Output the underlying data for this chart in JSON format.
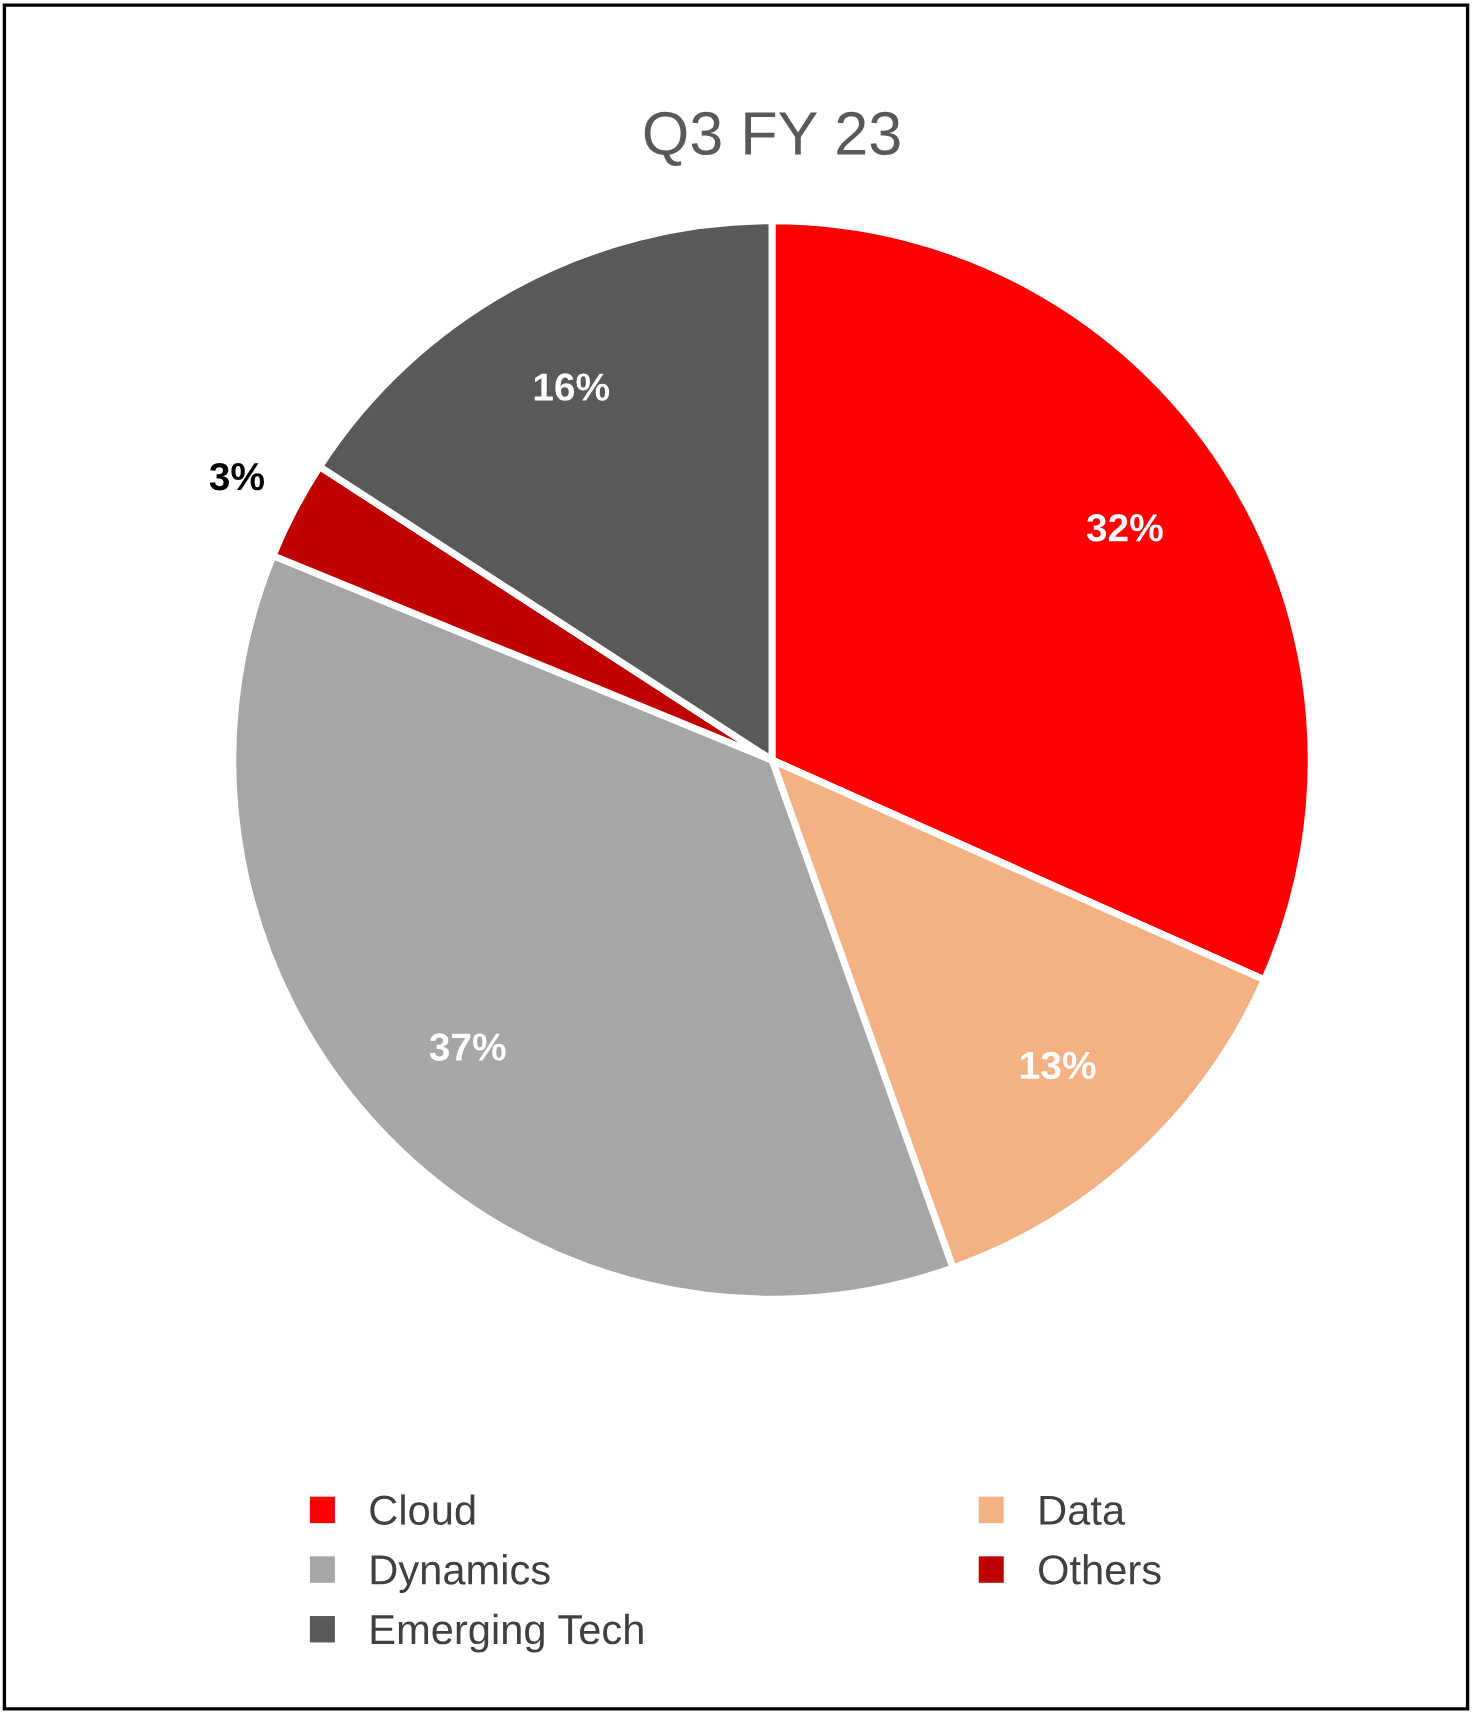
{
  "chart_data": {
    "type": "pie",
    "title": "Q3 FY 23",
    "categories": [
      "Cloud",
      "Data",
      "Dynamics",
      "Others",
      "Emerging Tech"
    ],
    "values": [
      32,
      13,
      37,
      3,
      16
    ],
    "colors": [
      "#ff0000",
      "#f4b183",
      "#a6a6a6",
      "#c00000",
      "#595959"
    ],
    "value_labels": [
      "32%",
      "13%",
      "37%",
      "3%",
      "16%"
    ],
    "legend": "bottom"
  }
}
